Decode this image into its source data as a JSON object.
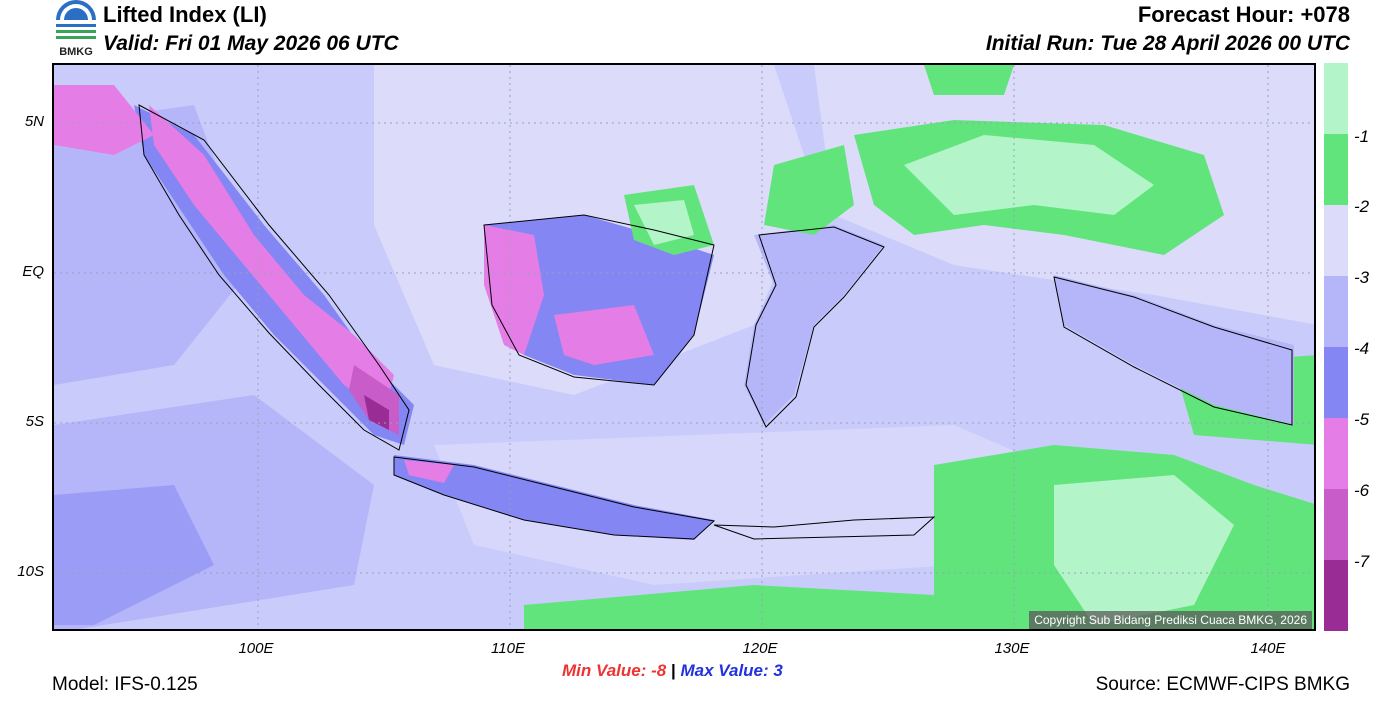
{
  "header": {
    "title": "Lifted Index (LI)",
    "valid": "Valid: Fri 01 May 2026 06 UTC",
    "forecast_hour": "Forecast Hour: +078",
    "initial_run": "Initial Run: Tue 28 April 2026 00 UTC",
    "logo_text": "BMKG"
  },
  "axes": {
    "lat_labels": [
      "5N",
      "EQ",
      "5S",
      "10S"
    ],
    "lon_labels": [
      "100E",
      "110E",
      "120E",
      "130E",
      "140E"
    ]
  },
  "colorbar": {
    "labels": [
      "-1",
      "-2",
      "-3",
      "-4",
      "-5",
      "-6",
      "-7"
    ],
    "colors": [
      "#b3f5c8",
      "#62e47c",
      "#dcdcfa",
      "#b4b6f9",
      "#8386f3",
      "#e47ee6",
      "#c85cc8",
      "#9a2c95"
    ]
  },
  "footer": {
    "model": "Model: IFS-0.125",
    "min_label": "Min Value:",
    "min_value": "-8",
    "separator": "|",
    "max_label": "Max Value:",
    "max_value": "3",
    "source": "Source: ECMWF-CIPS BMKG",
    "copyright": "Copyright Sub Bidang Prediksi Cuaca BMKG, 2026"
  }
}
